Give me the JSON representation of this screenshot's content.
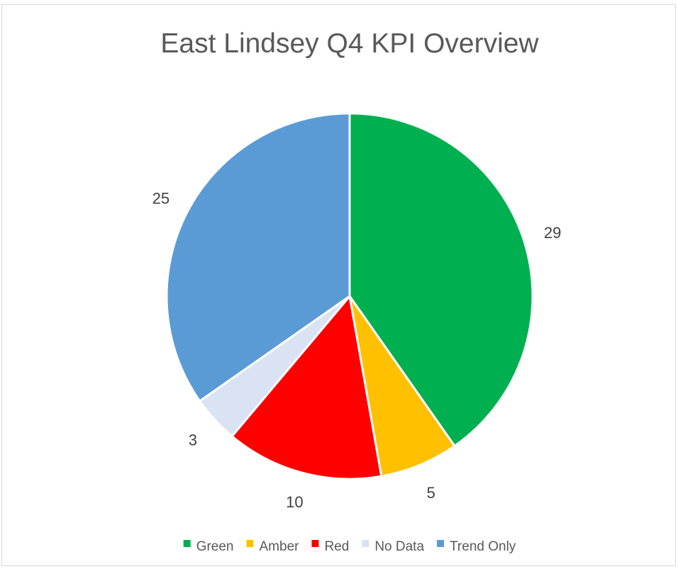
{
  "chart_data": {
    "type": "pie",
    "title": "East Lindsey Q4 KPI Overview",
    "categories": [
      "Green",
      "Amber",
      "Red",
      "No Data",
      "Trend Only"
    ],
    "values": [
      29,
      5,
      10,
      3,
      25
    ],
    "colors": [
      "#00B050",
      "#FFC000",
      "#FF0000",
      "#DAE3F3",
      "#5B9BD5"
    ],
    "data_labels": [
      "29",
      "5",
      "10",
      "3",
      "25"
    ],
    "legend_position": "bottom",
    "start_angle": "12 o'clock, clockwise"
  }
}
